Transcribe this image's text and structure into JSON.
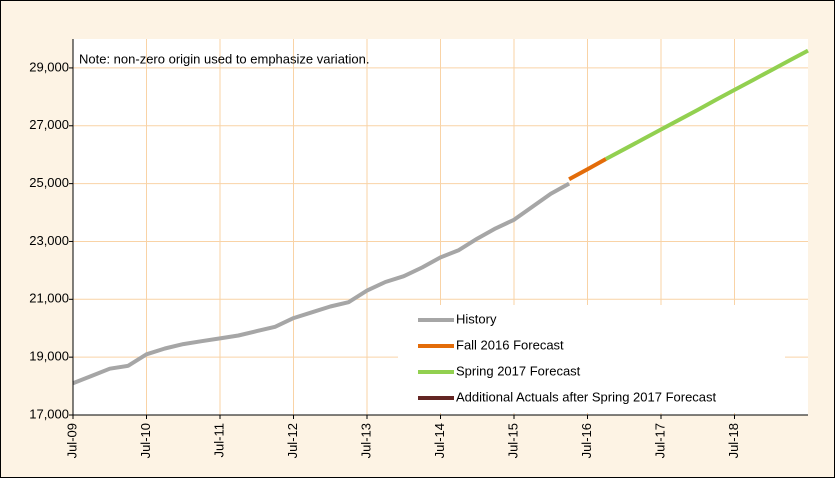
{
  "chart_data": {
    "type": "line",
    "annotation": "Note: non-zero origin used to emphasize variation.",
    "categories": [
      "Jul-09",
      null,
      null,
      null,
      "Jul-10",
      null,
      null,
      null,
      "Jul-11",
      null,
      null,
      null,
      "Jul-12",
      null,
      null,
      null,
      "Jul-13",
      null,
      null,
      null,
      "Jul-14",
      null,
      null,
      null,
      "Jul-15",
      null,
      null,
      null,
      "Jul-16",
      null,
      null,
      null,
      "Jul-17",
      null,
      null,
      null,
      "Jul-18",
      null,
      null,
      null,
      null
    ],
    "series": [
      {
        "name": "History",
        "color": "#a6a6a6",
        "values": [
          18100,
          18350,
          18600,
          18700,
          19100,
          19300,
          19450,
          19550,
          19650,
          19750,
          19900,
          20050,
          20350,
          20550,
          20750,
          20900,
          21300,
          21600,
          21800,
          22100,
          22450,
          22700,
          23100,
          23450,
          23750,
          24200,
          24650,
          25000,
          null,
          null,
          null,
          null,
          null,
          null,
          null,
          null,
          null,
          null,
          null,
          null,
          null
        ]
      },
      {
        "name": "Fall 2016 Forecast",
        "color": "#e36c09",
        "values": [
          null,
          null,
          null,
          null,
          null,
          null,
          null,
          null,
          null,
          null,
          null,
          null,
          null,
          null,
          null,
          null,
          null,
          null,
          null,
          null,
          null,
          null,
          null,
          null,
          null,
          null,
          null,
          25150,
          25500,
          25850,
          null,
          null,
          null,
          null,
          null,
          null,
          null,
          null,
          null,
          null,
          null
        ]
      },
      {
        "name": "Spring 2017 Forecast",
        "color": "#92d050",
        "values": [
          null,
          null,
          null,
          null,
          null,
          null,
          null,
          null,
          null,
          null,
          null,
          null,
          null,
          null,
          null,
          null,
          null,
          null,
          null,
          null,
          null,
          null,
          null,
          null,
          null,
          null,
          null,
          null,
          null,
          25850,
          26190,
          26530,
          26870,
          27210,
          27550,
          27900,
          28240,
          28580,
          28920,
          29260,
          29600
        ]
      },
      {
        "name": "Additional Actuals after Spring 2017 Forecast",
        "color": "#632523",
        "values": [
          null,
          null,
          null,
          null,
          null,
          null,
          null,
          null,
          null,
          null,
          null,
          null,
          null,
          null,
          null,
          null,
          null,
          null,
          null,
          null,
          null,
          null,
          null,
          null,
          null,
          null,
          null,
          null,
          null,
          null,
          null,
          null,
          null,
          null,
          null,
          null,
          null,
          null,
          null,
          null,
          null
        ]
      }
    ],
    "ylim": [
      17000,
      30000
    ],
    "yticks": [
      {
        "value": 17000,
        "label": "17,000"
      },
      {
        "value": 19000,
        "label": "19,000"
      },
      {
        "value": 21000,
        "label": "21,000"
      },
      {
        "value": 23000,
        "label": "23,000"
      },
      {
        "value": 25000,
        "label": "25,000"
      },
      {
        "value": 27000,
        "label": "27,000"
      },
      {
        "value": 29000,
        "label": "29,000"
      }
    ],
    "grid": true,
    "legend": "lower right"
  }
}
